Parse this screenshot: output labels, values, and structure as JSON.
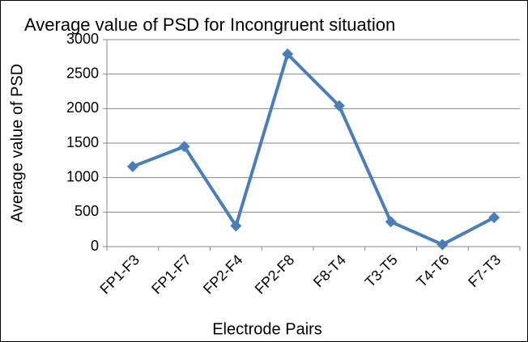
{
  "chart_data": {
    "type": "line",
    "title": "Average value of PSD for Incongruent situation",
    "x_label": "Electrode Pairs",
    "y_label": "Average value of PSD",
    "categories": [
      "FP1-F3",
      "FP1-F7",
      "FP2-F4",
      "FP2-F8",
      "F8-T4",
      "T3-T5",
      "T4-T6",
      "F7-T3"
    ],
    "series": [
      {
        "name": "Average value of PSD",
        "color": "#4a7ebb",
        "values": [
          1160,
          1450,
          300,
          2790,
          2040,
          360,
          30,
          420
        ]
      }
    ],
    "ylim": [
      0,
      3000
    ],
    "yticks": [
      0,
      500,
      1000,
      1500,
      2000,
      2500,
      3000
    ],
    "grid": true
  }
}
